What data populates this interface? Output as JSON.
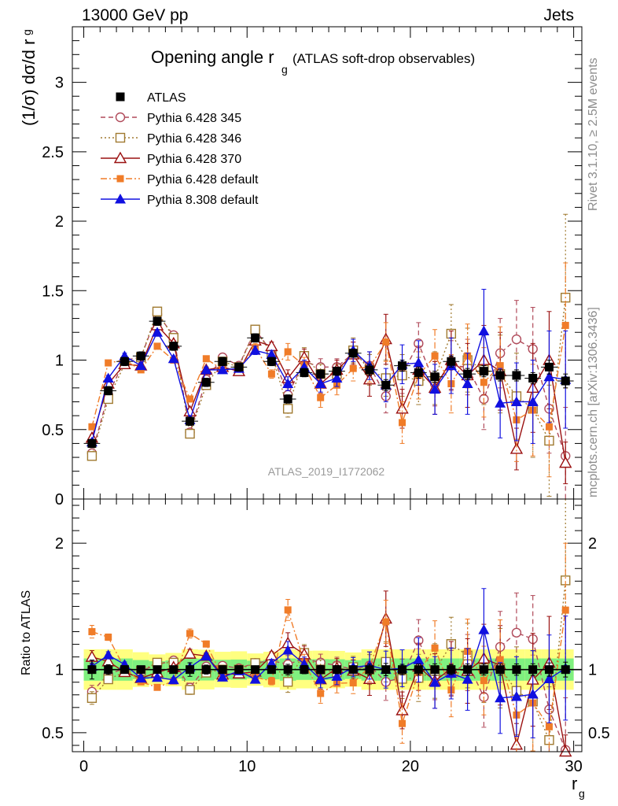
{
  "header": {
    "left": "13000 GeV pp",
    "right": "Jets"
  },
  "side_labels": {
    "rivet": "Rivet 3.1.10, ≥ 2.5M events",
    "mcplots": "mcplots.cern.ch [arXiv:1306.3436]"
  },
  "colors": {
    "ATLAS": "#000000",
    "Pythia 6.428 345": "#b04a5a",
    "Pythia 6.428 346": "#a07a30",
    "Pythia 6.428 370": "#9a1010",
    "Pythia 6.428 default": "#f07c28",
    "Pythia 8.308 default": "#1010e0",
    "band_inner": "#7ff07f",
    "band_outer": "#ffff80"
  },
  "chart_data": {
    "type": "scatter",
    "title": "Opening angle r_g (ATLAS soft-drop observables)",
    "title_main": "Opening angle r",
    "title_sub": "g",
    "title_tail": "(ATLAS soft-drop observables)",
    "watermark": "ATLAS_2019_I1772062",
    "ylabel": "(1/σ) dσ/d r_g",
    "ylabel_main": "(1/σ) dσ/d r",
    "ylabel_sub": "g",
    "xlabel": "r_g",
    "xlabel_main": "r",
    "xlabel_sub": "g",
    "ratio_ylabel": "Ratio to ATLAS",
    "xlim": [
      -0.7,
      30.5
    ],
    "ylim": [
      0,
      3.4
    ],
    "ratio_ylim": [
      0.35,
      2.35
    ],
    "x_ticks": [
      "0",
      "10",
      "20",
      "30"
    ],
    "y_ticks": [
      "0",
      "0.5",
      "1",
      "1.5",
      "2",
      "2.5",
      "3"
    ],
    "ratio_y_ticks": [
      "0.5",
      "1",
      "2"
    ],
    "x": [
      0.5,
      1.5,
      2.5,
      3.5,
      4.5,
      5.5,
      6.5,
      7.5,
      8.5,
      9.5,
      10.5,
      11.5,
      12.5,
      13.5,
      14.5,
      15.5,
      16.5,
      17.5,
      18.5,
      19.5,
      20.5,
      21.5,
      22.5,
      23.5,
      24.5,
      25.5,
      26.5,
      27.5,
      28.5,
      29.5
    ],
    "series": [
      {
        "name": "ATLAS",
        "style": "data",
        "values": [
          0.4,
          0.78,
          0.99,
          1.03,
          1.28,
          1.1,
          0.56,
          0.84,
          0.99,
          0.95,
          1.16,
          0.99,
          0.72,
          0.91,
          0.9,
          0.92,
          1.05,
          0.93,
          0.82,
          0.96,
          0.91,
          0.88,
          0.99,
          0.9,
          0.92,
          0.89,
          0.89,
          0.87,
          0.95,
          0.85
        ],
        "errors": [
          0.03,
          0.03,
          0.03,
          0.03,
          0.03,
          0.03,
          0.03,
          0.03,
          0.03,
          0.03,
          0.03,
          0.03,
          0.03,
          0.03,
          0.03,
          0.03,
          0.03,
          0.04,
          0.04,
          0.04,
          0.04,
          0.04,
          0.04,
          0.04,
          0.04,
          0.04,
          0.04,
          0.04,
          0.05,
          0.05
        ]
      },
      {
        "name": "Pythia 6.428 345",
        "style": "open-circle-dashed",
        "values": [
          0.33,
          0.75,
          1.0,
          1.02,
          1.33,
          1.18,
          0.48,
          0.86,
          1.02,
          0.96,
          1.22,
          1.06,
          0.75,
          0.99,
          0.95,
          0.95,
          1.05,
          0.96,
          0.74,
          0.9,
          1.12,
          0.83,
          0.96,
          0.95,
          0.72,
          1.05,
          1.15,
          1.08,
          0.65,
          0.31
        ],
        "errors": [
          0.02,
          0.02,
          0.02,
          0.02,
          0.02,
          0.02,
          0.02,
          0.02,
          0.02,
          0.02,
          0.03,
          0.03,
          0.05,
          0.05,
          0.06,
          0.06,
          0.08,
          0.1,
          0.12,
          0.14,
          0.15,
          0.16,
          0.18,
          0.2,
          0.22,
          0.25,
          0.28,
          0.3,
          0.32,
          0.35
        ]
      },
      {
        "name": "Pythia 6.428 346",
        "style": "open-square-dotted",
        "values": [
          0.31,
          0.72,
          0.97,
          1.02,
          1.35,
          1.16,
          0.47,
          0.82,
          0.99,
          0.95,
          1.22,
          1.05,
          0.65,
          1.03,
          0.9,
          0.9,
          1.07,
          0.93,
          0.87,
          0.89,
          0.85,
          0.87,
          1.19,
          1.0,
          0.93,
          0.9,
          0.74,
          0.65,
          0.42,
          1.45
        ],
        "errors": [
          0.02,
          0.02,
          0.02,
          0.02,
          0.02,
          0.02,
          0.02,
          0.02,
          0.02,
          0.02,
          0.03,
          0.03,
          0.06,
          0.06,
          0.07,
          0.07,
          0.09,
          0.11,
          0.13,
          0.15,
          0.17,
          0.19,
          0.21,
          0.23,
          0.25,
          0.28,
          0.31,
          0.35,
          0.4,
          0.6
        ]
      },
      {
        "name": "Pythia 6.428 370",
        "style": "open-triangle-solid",
        "values": [
          0.44,
          0.83,
          0.97,
          0.96,
          1.25,
          1.12,
          0.63,
          0.93,
          0.95,
          0.92,
          1.14,
          1.1,
          0.87,
          1.02,
          0.83,
          0.93,
          1.04,
          0.86,
          1.15,
          0.65,
          0.93,
          0.8,
          1.0,
          0.89,
          1.0,
          0.92,
          0.36,
          0.8,
          1.0,
          0.26
        ],
        "errors": [
          0.02,
          0.02,
          0.02,
          0.02,
          0.02,
          0.02,
          0.02,
          0.02,
          0.02,
          0.02,
          0.03,
          0.03,
          0.06,
          0.06,
          0.07,
          0.07,
          0.09,
          0.12,
          0.18,
          0.14,
          0.17,
          0.19,
          0.21,
          0.23,
          0.25,
          0.28,
          0.15,
          0.32,
          0.35,
          0.15
        ]
      },
      {
        "name": "Pythia 6.428 default",
        "style": "filled-square-dashdot",
        "values": [
          0.52,
          0.98,
          1.0,
          0.93,
          1.1,
          1.0,
          0.72,
          1.01,
          0.93,
          0.94,
          1.09,
          0.9,
          1.06,
          0.96,
          0.73,
          0.82,
          0.94,
          0.95,
          1.13,
          0.55,
          0.89,
          1.03,
          0.83,
          1.03,
          0.84,
          0.96,
          0.57,
          0.64,
          0.52,
          1.25
        ],
        "errors": [
          0.02,
          0.02,
          0.02,
          0.02,
          0.02,
          0.02,
          0.02,
          0.02,
          0.02,
          0.02,
          0.03,
          0.03,
          0.06,
          0.06,
          0.07,
          0.07,
          0.09,
          0.11,
          0.14,
          0.15,
          0.17,
          0.19,
          0.21,
          0.23,
          0.25,
          0.28,
          0.3,
          0.33,
          0.36,
          0.45
        ]
      },
      {
        "name": "Pythia 8.308 default",
        "style": "filled-triangle-solid",
        "values": [
          0.41,
          0.87,
          1.03,
          0.96,
          1.2,
          1.01,
          0.57,
          0.93,
          0.93,
          0.94,
          1.07,
          1.04,
          0.83,
          0.95,
          0.83,
          0.87,
          1.07,
          0.96,
          0.82,
          0.97,
          0.98,
          0.79,
          0.96,
          0.83,
          1.21,
          0.69,
          0.7,
          0.7,
          0.88,
          0.86
        ],
        "errors": [
          0.02,
          0.02,
          0.02,
          0.02,
          0.02,
          0.02,
          0.02,
          0.02,
          0.02,
          0.02,
          0.03,
          0.03,
          0.05,
          0.05,
          0.06,
          0.06,
          0.08,
          0.1,
          0.12,
          0.14,
          0.16,
          0.18,
          0.2,
          0.22,
          0.3,
          0.25,
          0.28,
          0.3,
          0.33,
          0.35
        ]
      }
    ]
  }
}
